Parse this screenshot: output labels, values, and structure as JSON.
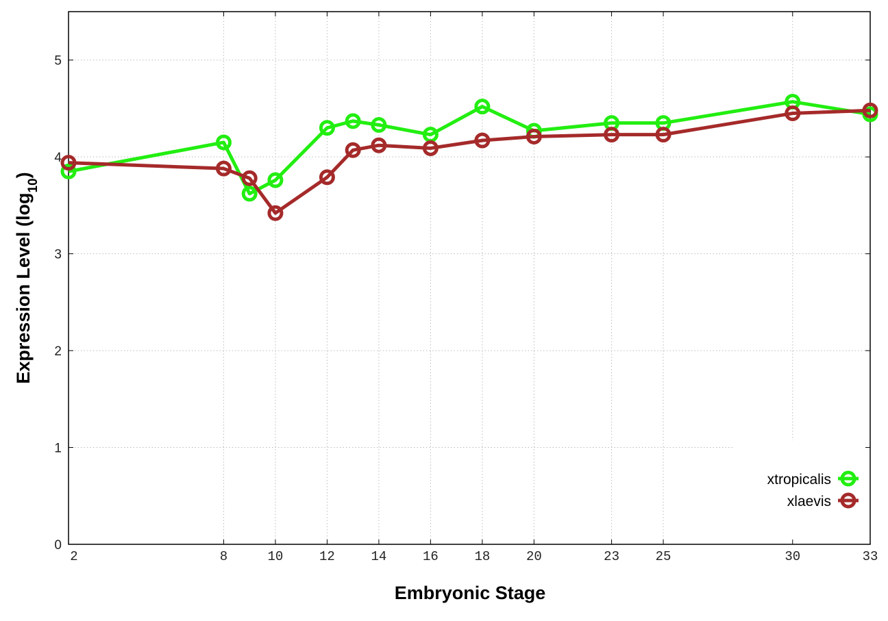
{
  "chart_data": {
    "type": "line",
    "title": "",
    "xlabel": "Embryonic Stage",
    "ylabel": {
      "main": "Expression Level (log",
      "sub": "10",
      "end": ")"
    },
    "xlim": [
      2,
      33
    ],
    "ylim": [
      0,
      5.5
    ],
    "x_ticks": [
      2,
      8,
      10,
      12,
      14,
      16,
      18,
      20,
      23,
      25,
      30,
      33
    ],
    "y_ticks": [
      0,
      1,
      2,
      3,
      4,
      5
    ],
    "grid": true,
    "legend_position": "bottom-right",
    "x": [
      2,
      8,
      9,
      10,
      12,
      13,
      14,
      16,
      18,
      20,
      23,
      25,
      30,
      33
    ],
    "series": [
      {
        "name": "xtropicalis",
        "color": "#22ee11",
        "values": [
          3.85,
          4.15,
          3.62,
          3.76,
          4.3,
          4.37,
          4.33,
          4.23,
          4.52,
          4.27,
          4.35,
          4.35,
          4.57,
          4.44
        ]
      },
      {
        "name": "xlaevis",
        "color": "#a52a2a",
        "values": [
          3.94,
          3.88,
          3.78,
          3.42,
          3.79,
          4.07,
          4.12,
          4.09,
          4.17,
          4.21,
          4.23,
          4.23,
          4.45,
          4.48
        ]
      }
    ]
  }
}
